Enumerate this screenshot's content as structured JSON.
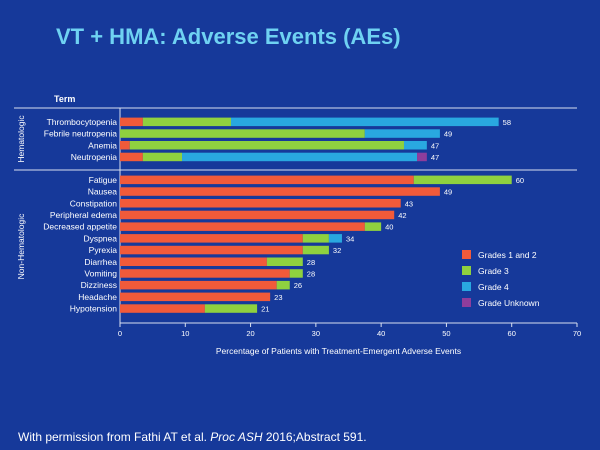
{
  "slide": {
    "title": "VT + HMA: Adverse Events (AEs)",
    "footnote_prefix": "With permission from Fathi AT et al. ",
    "footnote_journal": "Proc ASH",
    "footnote_suffix": " 2016;Abstract 591."
  },
  "colors": {
    "background": "#16399a",
    "title": "#6fd2f2",
    "axis": "#d8e0f0",
    "text": "#ffffff"
  },
  "chart_data": {
    "type": "bar",
    "orientation": "horizontal",
    "stacked": true,
    "column_header": "Term",
    "xlabel": "Percentage of Patients with Treatment-Emergent Adverse Events",
    "xlim": [
      0,
      70
    ],
    "xticks": [
      0,
      10,
      20,
      30,
      40,
      50,
      60,
      70
    ],
    "grid": false,
    "legend_position": "right",
    "groups": [
      {
        "name": "Hematologic",
        "categories": [
          "Thrombocytopenia",
          "Febrile neutropenia",
          "Anemia",
          "Neutropenia"
        ]
      },
      {
        "name": "Non-Hematologic",
        "categories": [
          "Fatigue",
          "Nausea",
          "Constipation",
          "Peripheral edema",
          "Decreased appetite",
          "Dyspnea",
          "Pyrexia",
          "Diarrhea",
          "Vomiting",
          "Dizziness",
          "Headache",
          "Hypotension"
        ]
      }
    ],
    "categories": [
      "Thrombocytopenia",
      "Febrile neutropenia",
      "Anemia",
      "Neutropenia",
      "Fatigue",
      "Nausea",
      "Constipation",
      "Peripheral edema",
      "Decreased appetite",
      "Dyspnea",
      "Pyrexia",
      "Diarrhea",
      "Vomiting",
      "Dizziness",
      "Headache",
      "Hypotension"
    ],
    "series": [
      {
        "name": "Grades 1 and 2",
        "color": "#f15a3a",
        "values": [
          3.5,
          0,
          1.5,
          3.5,
          45,
          49,
          43,
          42,
          37.5,
          28,
          28,
          22.5,
          26,
          24,
          23,
          13
        ]
      },
      {
        "name": "Grade 3",
        "color": "#8fd13f",
        "values": [
          13.5,
          37.5,
          42,
          6,
          15,
          0,
          0,
          0,
          2.5,
          4,
          4,
          5.5,
          2,
          2,
          0,
          8
        ]
      },
      {
        "name": "Grade 4",
        "color": "#29a8e0",
        "values": [
          41,
          11.5,
          3.5,
          36,
          0,
          0,
          0,
          0,
          0,
          2,
          0,
          0,
          0,
          0,
          0,
          0
        ]
      },
      {
        "name": "Grade Unknown",
        "color": "#8e3d9c",
        "values": [
          0,
          0,
          0,
          1.5,
          0,
          0,
          0,
          0,
          0,
          0,
          0,
          0,
          0,
          0,
          0,
          0
        ]
      }
    ],
    "totals": [
      58,
      49,
      47,
      47,
      60,
      49,
      43,
      42,
      40,
      34,
      32,
      28,
      28,
      26,
      23,
      21
    ]
  }
}
